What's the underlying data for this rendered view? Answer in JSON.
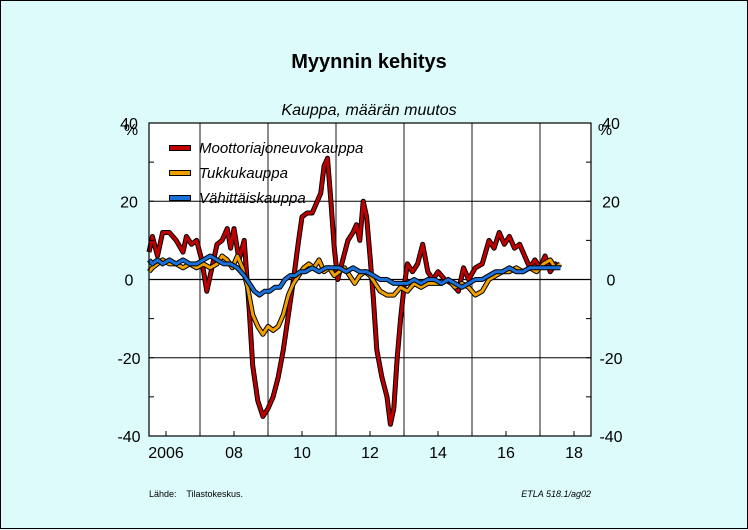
{
  "chart_data": {
    "type": "line",
    "title": "Myynnin kehitys",
    "subtitle": "Kauppa, määrän muutos",
    "y_unit_left": "%",
    "y_unit_right": "%",
    "ylim": [
      -40,
      40
    ],
    "yticks": [
      -40,
      -20,
      0,
      20,
      40
    ],
    "xlim": [
      2005.5,
      2018.5
    ],
    "xticks": [
      {
        "value": 2006,
        "label": "2006"
      },
      {
        "value": 2008,
        "label": "08"
      },
      {
        "value": 2010,
        "label": "10"
      },
      {
        "value": 2012,
        "label": "12"
      },
      {
        "value": 2014,
        "label": "14"
      },
      {
        "value": 2016,
        "label": "16"
      },
      {
        "value": 2018,
        "label": "18"
      }
    ],
    "grid": true,
    "legend_position": "top-left",
    "series": [
      {
        "name": "Moottoriajoneuvokauppa",
        "color": "#c00000",
        "points": [
          [
            2005.5,
            7
          ],
          [
            2005.6,
            11
          ],
          [
            2005.75,
            6
          ],
          [
            2005.9,
            12
          ],
          [
            2006.1,
            12
          ],
          [
            2006.3,
            10
          ],
          [
            2006.5,
            7
          ],
          [
            2006.6,
            11
          ],
          [
            2006.75,
            9
          ],
          [
            2006.9,
            10
          ],
          [
            2007.05,
            5
          ],
          [
            2007.2,
            -3
          ],
          [
            2007.35,
            3
          ],
          [
            2007.5,
            9
          ],
          [
            2007.65,
            10
          ],
          [
            2007.8,
            13
          ],
          [
            2007.9,
            8
          ],
          [
            2008.0,
            13
          ],
          [
            2008.15,
            5
          ],
          [
            2008.3,
            10
          ],
          [
            2008.45,
            -8
          ],
          [
            2008.55,
            -22
          ],
          [
            2008.7,
            -31
          ],
          [
            2008.85,
            -35
          ],
          [
            2009.0,
            -33
          ],
          [
            2009.15,
            -30
          ],
          [
            2009.3,
            -25
          ],
          [
            2009.45,
            -18
          ],
          [
            2009.6,
            -9
          ],
          [
            2009.75,
            0
          ],
          [
            2009.9,
            10
          ],
          [
            2010.0,
            16
          ],
          [
            2010.15,
            17
          ],
          [
            2010.3,
            17
          ],
          [
            2010.45,
            20
          ],
          [
            2010.55,
            22
          ],
          [
            2010.65,
            29
          ],
          [
            2010.75,
            31
          ],
          [
            2010.85,
            20
          ],
          [
            2010.95,
            8
          ],
          [
            2011.05,
            0
          ],
          [
            2011.2,
            5
          ],
          [
            2011.35,
            10
          ],
          [
            2011.5,
            12
          ],
          [
            2011.6,
            14
          ],
          [
            2011.7,
            10
          ],
          [
            2011.8,
            20
          ],
          [
            2011.9,
            16
          ],
          [
            2012.0,
            6
          ],
          [
            2012.1,
            -5
          ],
          [
            2012.2,
            -18
          ],
          [
            2012.35,
            -25
          ],
          [
            2012.5,
            -30
          ],
          [
            2012.6,
            -37
          ],
          [
            2012.7,
            -33
          ],
          [
            2012.8,
            -20
          ],
          [
            2012.9,
            -10
          ],
          [
            2013.0,
            -2
          ],
          [
            2013.1,
            4
          ],
          [
            2013.25,
            2
          ],
          [
            2013.4,
            4
          ],
          [
            2013.55,
            9
          ],
          [
            2013.7,
            2
          ],
          [
            2013.85,
            0
          ],
          [
            2014.0,
            2
          ],
          [
            2014.2,
            0
          ],
          [
            2014.4,
            -1
          ],
          [
            2014.6,
            -3
          ],
          [
            2014.75,
            3
          ],
          [
            2014.9,
            0
          ],
          [
            2015.1,
            3
          ],
          [
            2015.3,
            4
          ],
          [
            2015.5,
            10
          ],
          [
            2015.65,
            8
          ],
          [
            2015.8,
            12
          ],
          [
            2015.95,
            9
          ],
          [
            2016.1,
            11
          ],
          [
            2016.25,
            8
          ],
          [
            2016.4,
            9
          ],
          [
            2016.55,
            6
          ],
          [
            2016.7,
            3
          ],
          [
            2016.85,
            5
          ],
          [
            2017.0,
            3
          ],
          [
            2017.15,
            6
          ],
          [
            2017.3,
            2
          ],
          [
            2017.45,
            4
          ],
          [
            2017.6,
            3
          ]
        ]
      },
      {
        "name": "Tukkukauppa",
        "color": "#f0a000",
        "points": [
          [
            2005.5,
            2
          ],
          [
            2005.6,
            3
          ],
          [
            2005.75,
            4
          ],
          [
            2005.9,
            5
          ],
          [
            2006.1,
            4
          ],
          [
            2006.3,
            4
          ],
          [
            2006.5,
            3
          ],
          [
            2006.7,
            4
          ],
          [
            2006.9,
            3
          ],
          [
            2007.1,
            4
          ],
          [
            2007.3,
            3
          ],
          [
            2007.5,
            4
          ],
          [
            2007.65,
            6
          ],
          [
            2007.8,
            5
          ],
          [
            2007.95,
            3
          ],
          [
            2008.1,
            6
          ],
          [
            2008.25,
            3
          ],
          [
            2008.4,
            -2
          ],
          [
            2008.55,
            -9
          ],
          [
            2008.7,
            -12
          ],
          [
            2008.85,
            -14
          ],
          [
            2009.0,
            -12
          ],
          [
            2009.15,
            -13
          ],
          [
            2009.3,
            -12
          ],
          [
            2009.45,
            -9
          ],
          [
            2009.6,
            -4
          ],
          [
            2009.75,
            -1
          ],
          [
            2009.9,
            1
          ],
          [
            2010.05,
            3
          ],
          [
            2010.2,
            4
          ],
          [
            2010.35,
            3
          ],
          [
            2010.5,
            5
          ],
          [
            2010.65,
            2
          ],
          [
            2010.8,
            3
          ],
          [
            2010.95,
            1
          ],
          [
            2011.1,
            2
          ],
          [
            2011.25,
            3
          ],
          [
            2011.4,
            1
          ],
          [
            2011.55,
            -1
          ],
          [
            2011.7,
            1
          ],
          [
            2011.85,
            2
          ],
          [
            2012.0,
            1
          ],
          [
            2012.15,
            -1
          ],
          [
            2012.3,
            -3
          ],
          [
            2012.5,
            -4
          ],
          [
            2012.7,
            -4
          ],
          [
            2012.9,
            -2
          ],
          [
            2013.1,
            -3
          ],
          [
            2013.3,
            -1
          ],
          [
            2013.5,
            -2
          ],
          [
            2013.7,
            -1
          ],
          [
            2013.9,
            -1
          ],
          [
            2014.1,
            -1
          ],
          [
            2014.3,
            0
          ],
          [
            2014.5,
            -2
          ],
          [
            2014.7,
            -1
          ],
          [
            2014.9,
            -2
          ],
          [
            2015.1,
            -4
          ],
          [
            2015.3,
            -3
          ],
          [
            2015.5,
            0
          ],
          [
            2015.7,
            1
          ],
          [
            2015.9,
            2
          ],
          [
            2016.1,
            2
          ],
          [
            2016.3,
            3
          ],
          [
            2016.5,
            2
          ],
          [
            2016.7,
            3
          ],
          [
            2016.9,
            2
          ],
          [
            2017.1,
            4
          ],
          [
            2017.3,
            5
          ],
          [
            2017.45,
            3
          ],
          [
            2017.6,
            4
          ]
        ]
      },
      {
        "name": "Vähittäiskauppa",
        "color": "#1a6fd8",
        "points": [
          [
            2005.5,
            5
          ],
          [
            2005.6,
            4
          ],
          [
            2005.75,
            5
          ],
          [
            2005.9,
            4
          ],
          [
            2006.1,
            5
          ],
          [
            2006.3,
            4
          ],
          [
            2006.5,
            5
          ],
          [
            2006.7,
            4
          ],
          [
            2006.9,
            4
          ],
          [
            2007.1,
            5
          ],
          [
            2007.3,
            6
          ],
          [
            2007.5,
            5
          ],
          [
            2007.7,
            4
          ],
          [
            2007.9,
            4
          ],
          [
            2008.1,
            3
          ],
          [
            2008.3,
            1
          ],
          [
            2008.45,
            -1
          ],
          [
            2008.6,
            -3
          ],
          [
            2008.75,
            -4
          ],
          [
            2008.9,
            -3
          ],
          [
            2009.05,
            -3
          ],
          [
            2009.2,
            -2
          ],
          [
            2009.35,
            -2
          ],
          [
            2009.5,
            0
          ],
          [
            2009.65,
            1
          ],
          [
            2009.8,
            1
          ],
          [
            2009.95,
            2
          ],
          [
            2010.1,
            2
          ],
          [
            2010.3,
            3
          ],
          [
            2010.5,
            2
          ],
          [
            2010.7,
            3
          ],
          [
            2010.9,
            3
          ],
          [
            2011.1,
            3
          ],
          [
            2011.3,
            2
          ],
          [
            2011.5,
            3
          ],
          [
            2011.7,
            2
          ],
          [
            2011.9,
            2
          ],
          [
            2012.1,
            1
          ],
          [
            2012.3,
            0
          ],
          [
            2012.5,
            0
          ],
          [
            2012.7,
            -1
          ],
          [
            2012.9,
            -1
          ],
          [
            2013.1,
            -1
          ],
          [
            2013.3,
            0
          ],
          [
            2013.5,
            -1
          ],
          [
            2013.7,
            0
          ],
          [
            2013.9,
            0
          ],
          [
            2014.1,
            -1
          ],
          [
            2014.3,
            0
          ],
          [
            2014.5,
            -1
          ],
          [
            2014.7,
            -2
          ],
          [
            2014.9,
            -1
          ],
          [
            2015.1,
            0
          ],
          [
            2015.3,
            0
          ],
          [
            2015.5,
            1
          ],
          [
            2015.7,
            2
          ],
          [
            2015.9,
            2
          ],
          [
            2016.1,
            3
          ],
          [
            2016.3,
            2
          ],
          [
            2016.5,
            2
          ],
          [
            2016.7,
            3
          ],
          [
            2016.9,
            3
          ],
          [
            2017.1,
            3
          ],
          [
            2017.3,
            3
          ],
          [
            2017.45,
            3
          ],
          [
            2017.6,
            3
          ]
        ]
      }
    ]
  },
  "footer": {
    "source": "Lähde:    Tilastokeskus.",
    "credit": "ETLA 518.1/ag02"
  }
}
